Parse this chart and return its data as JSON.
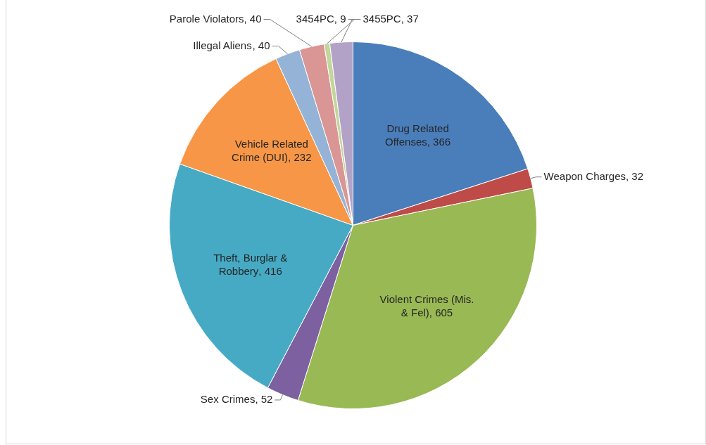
{
  "chart_data": {
    "type": "pie",
    "categories": [
      "Drug Related Offenses",
      "Weapon Charges",
      "Violent Crimes (Mis. & Fel)",
      "Sex Crimes",
      "Theft, Burglar & Robbery",
      "Vehicle Related Crime (DUI)",
      "Illegal Aliens",
      "Parole Violators",
      "3454PC",
      "3455PC"
    ],
    "values": [
      366,
      32,
      605,
      52,
      416,
      232,
      40,
      40,
      9,
      37
    ],
    "colors": [
      "#4a7ebb",
      "#be4b48",
      "#98b954",
      "#7d60a0",
      "#46aac5",
      "#f79646",
      "#95b3d7",
      "#d99694",
      "#c3d69b",
      "#b3a2c7"
    ],
    "value_labels": [
      ", 366",
      ", 32",
      ", 605",
      ", 52",
      ", 416",
      ", 232",
      ", 40",
      ", 40",
      ", 9",
      ", 37"
    ],
    "legend": false
  }
}
